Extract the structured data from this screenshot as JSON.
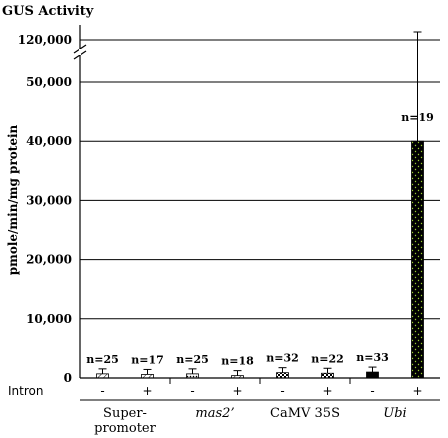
{
  "chart_data": {
    "type": "bar",
    "title": "GUS Activity",
    "ylabel": "pmole/min/mg protein",
    "row_label": "Intron",
    "ylim": [
      0,
      50000
    ],
    "axis_break": true,
    "break_tick_label": "120,000",
    "y_ticks": [
      "0",
      "10,000",
      "20,000",
      "30,000",
      "40,000",
      "50,000"
    ],
    "grid": "horizontal",
    "groups": [
      {
        "label": "Super-\npromoter",
        "italic": false
      },
      {
        "label": "mas2’",
        "italic": true
      },
      {
        "label": "CaMV 35S",
        "italic": false
      },
      {
        "label": "Ubi",
        "italic": true
      }
    ],
    "bars": [
      {
        "group": "Super-\npromoter",
        "intron": "-",
        "value": 700,
        "n_label": "n=25",
        "pattern": "diagonal"
      },
      {
        "group": "Super-\npromoter",
        "intron": "+",
        "value": 600,
        "n_label": "n=17",
        "pattern": "diagonal"
      },
      {
        "group": "mas2’",
        "intron": "-",
        "value": 700,
        "n_label": "n=25",
        "pattern": "dots"
      },
      {
        "group": "mas2’",
        "intron": "+",
        "value": 400,
        "n_label": "n=18",
        "pattern": "diagonal"
      },
      {
        "group": "CaMV 35S",
        "intron": "-",
        "value": 900,
        "n_label": "n=32",
        "pattern": "checker"
      },
      {
        "group": "CaMV 35S",
        "intron": "+",
        "value": 800,
        "n_label": "n=22",
        "pattern": "checker"
      },
      {
        "group": "Ubi",
        "intron": "-",
        "value": 1000,
        "n_label": "n=33",
        "pattern": "black"
      },
      {
        "group": "Ubi",
        "intron": "+",
        "value": 40000,
        "n_label": "n=19",
        "pattern": "stipple"
      }
    ],
    "colors": {
      "axis": "#000000",
      "bar_black": "#000000",
      "stipple_dot": "#9acd32"
    }
  }
}
